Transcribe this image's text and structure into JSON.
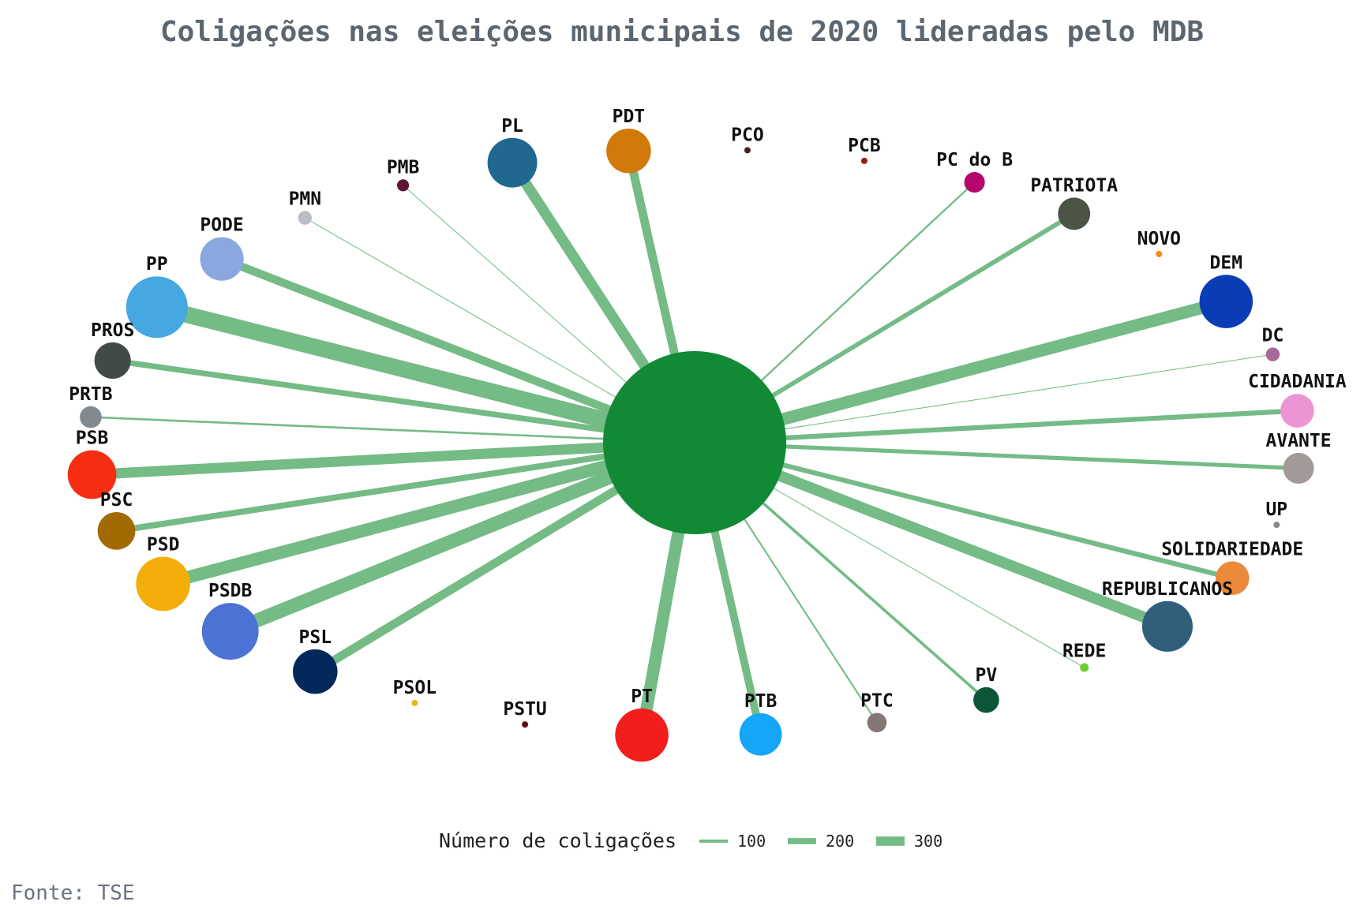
{
  "source": "Fonte: TSE",
  "chart_data": {
    "type": "network",
    "title": "Coligações nas eleições municipais de 2020 lideradas pelo MDB",
    "center": {
      "name": "MDB",
      "color": "#128a35"
    },
    "edge_color": "#74bb86",
    "legend": {
      "title": "Número de coligações",
      "values": [
        100,
        200,
        300
      ],
      "placement": "bottom"
    },
    "parties": [
      {
        "name": "PMN",
        "value": 20,
        "color": "#b8bec3"
      },
      {
        "name": "PMB",
        "value": 15,
        "color": "#5b1535"
      },
      {
        "name": "PL",
        "value": 260,
        "color": "#216891"
      },
      {
        "name": "PDT",
        "value": 210,
        "color": "#d17a0a"
      },
      {
        "name": "PCO",
        "value": 0,
        "color": "#4a1f1f"
      },
      {
        "name": "PCB",
        "value": 0,
        "color": "#9b1b1b"
      },
      {
        "name": "PC do B",
        "value": 45,
        "color": "#b5066e"
      },
      {
        "name": "PATRIOTA",
        "value": 110,
        "color": "#4c5446"
      },
      {
        "name": "NOVO",
        "value": 0,
        "color": "#f28c0f"
      },
      {
        "name": "DEM",
        "value": 300,
        "color": "#0a3cb5"
      },
      {
        "name": "DC",
        "value": 20,
        "color": "#a76a9a"
      },
      {
        "name": "CIDADANIA",
        "value": 120,
        "color": "#ed94d5"
      },
      {
        "name": "AVANTE",
        "value": 100,
        "color": "#a19a98"
      },
      {
        "name": "UP",
        "value": 0,
        "color": "#888888"
      },
      {
        "name": "SOLIDARIEDADE",
        "value": 120,
        "color": "#ec8a3b"
      },
      {
        "name": "REPUBLICANOS",
        "value": 270,
        "color": "#315e7b"
      },
      {
        "name": "REDE",
        "value": 8,
        "color": "#6ccc2d"
      },
      {
        "name": "PV",
        "value": 70,
        "color": "#0c5637"
      },
      {
        "name": "PTC",
        "value": 40,
        "color": "#857775"
      },
      {
        "name": "PTB",
        "value": 190,
        "color": "#15a5f9"
      },
      {
        "name": "PT",
        "value": 300,
        "color": "#f21e1c"
      },
      {
        "name": "PSTU",
        "value": 0,
        "color": "#5b1020"
      },
      {
        "name": "PSOL",
        "value": 0,
        "color": "#f3b21d"
      },
      {
        "name": "PSL",
        "value": 210,
        "color": "#03285a"
      },
      {
        "name": "PSDB",
        "value": 340,
        "color": "#4b72d4"
      },
      {
        "name": "PSD",
        "value": 310,
        "color": "#f3ae0a"
      },
      {
        "name": "PSC",
        "value": 150,
        "color": "#a36a04"
      },
      {
        "name": "PSB",
        "value": 250,
        "color": "#f42d13"
      },
      {
        "name": "PRTB",
        "value": 50,
        "color": "#818a8e"
      },
      {
        "name": "PROS",
        "value": 140,
        "color": "#414a48"
      },
      {
        "name": "PP",
        "value": 400,
        "color": "#46a8e0"
      },
      {
        "name": "PODE",
        "value": 200,
        "color": "#8aa8df"
      }
    ]
  }
}
